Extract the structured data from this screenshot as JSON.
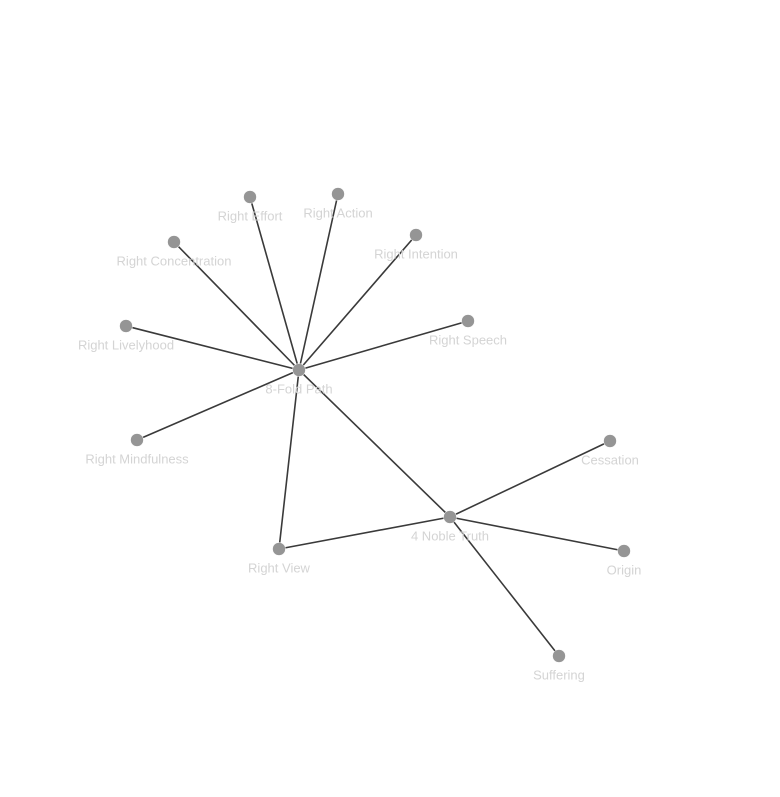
{
  "colors": {
    "node_fill": "#959595",
    "edge_stroke": "#3a3a3a",
    "label_text": "#d4d4d4",
    "background": "#ffffff"
  },
  "graph": {
    "nodes": [
      {
        "id": "8-fold-path",
        "label": "8-Fold Path"
      },
      {
        "id": "right-effort",
        "label": "Right Effort"
      },
      {
        "id": "right-action",
        "label": "Right Action"
      },
      {
        "id": "right-intention",
        "label": "Right Intention"
      },
      {
        "id": "right-concentration",
        "label": "Right Concentration"
      },
      {
        "id": "right-speech",
        "label": "Right Speech"
      },
      {
        "id": "right-livelyhood",
        "label": "Right Livelyhood"
      },
      {
        "id": "right-mindfulness",
        "label": "Right Mindfulness"
      },
      {
        "id": "right-view",
        "label": "Right View"
      },
      {
        "id": "4-noble-truth",
        "label": "4 Noble Truth"
      },
      {
        "id": "cessation",
        "label": "Cessation"
      },
      {
        "id": "origin",
        "label": "Origin"
      },
      {
        "id": "suffering",
        "label": "Suffering"
      }
    ],
    "edges": [
      {
        "source": "8-fold-path",
        "target": "right-effort"
      },
      {
        "source": "8-fold-path",
        "target": "right-action"
      },
      {
        "source": "8-fold-path",
        "target": "right-intention"
      },
      {
        "source": "8-fold-path",
        "target": "right-concentration"
      },
      {
        "source": "8-fold-path",
        "target": "right-speech"
      },
      {
        "source": "8-fold-path",
        "target": "right-livelyhood"
      },
      {
        "source": "8-fold-path",
        "target": "right-mindfulness"
      },
      {
        "source": "8-fold-path",
        "target": "right-view"
      },
      {
        "source": "8-fold-path",
        "target": "4-noble-truth"
      },
      {
        "source": "right-view",
        "target": "4-noble-truth"
      },
      {
        "source": "4-noble-truth",
        "target": "cessation"
      },
      {
        "source": "4-noble-truth",
        "target": "origin"
      },
      {
        "source": "4-noble-truth",
        "target": "suffering"
      }
    ]
  }
}
